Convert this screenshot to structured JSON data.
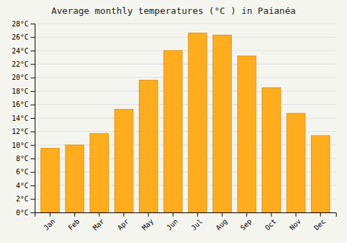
{
  "chart_data": {
    "type": "bar",
    "title": "Average monthly temperatures (°C ) in Paianéa",
    "categories": [
      "Jan",
      "Feb",
      "Mar",
      "Apr",
      "May",
      "Jun",
      "Jul",
      "Aug",
      "Sep",
      "Oct",
      "Nov",
      "Dec"
    ],
    "values": [
      9.5,
      10.0,
      11.7,
      15.3,
      19.6,
      24.0,
      26.6,
      26.3,
      23.2,
      18.5,
      14.7,
      11.4
    ],
    "color": "#FFAD1F",
    "ylim": [
      0,
      28
    ],
    "yticks": [
      {
        "value": 0,
        "label": "0°C"
      },
      {
        "value": 2,
        "label": "2°C"
      },
      {
        "value": 4,
        "label": "4°C"
      },
      {
        "value": 6,
        "label": "6°C"
      },
      {
        "value": 8,
        "label": "8°C"
      },
      {
        "value": 10,
        "label": "10°C"
      },
      {
        "value": 12,
        "label": "12°C"
      },
      {
        "value": 14,
        "label": "14°C"
      },
      {
        "value": 16,
        "label": "16°C"
      },
      {
        "value": 18,
        "label": "18°C"
      },
      {
        "value": 20,
        "label": "20°C"
      },
      {
        "value": 22,
        "label": "22°C"
      },
      {
        "value": 24,
        "label": "24°C"
      },
      {
        "value": 26,
        "label": "26°C"
      },
      {
        "value": 28,
        "label": "28°C"
      }
    ],
    "grid": true
  }
}
